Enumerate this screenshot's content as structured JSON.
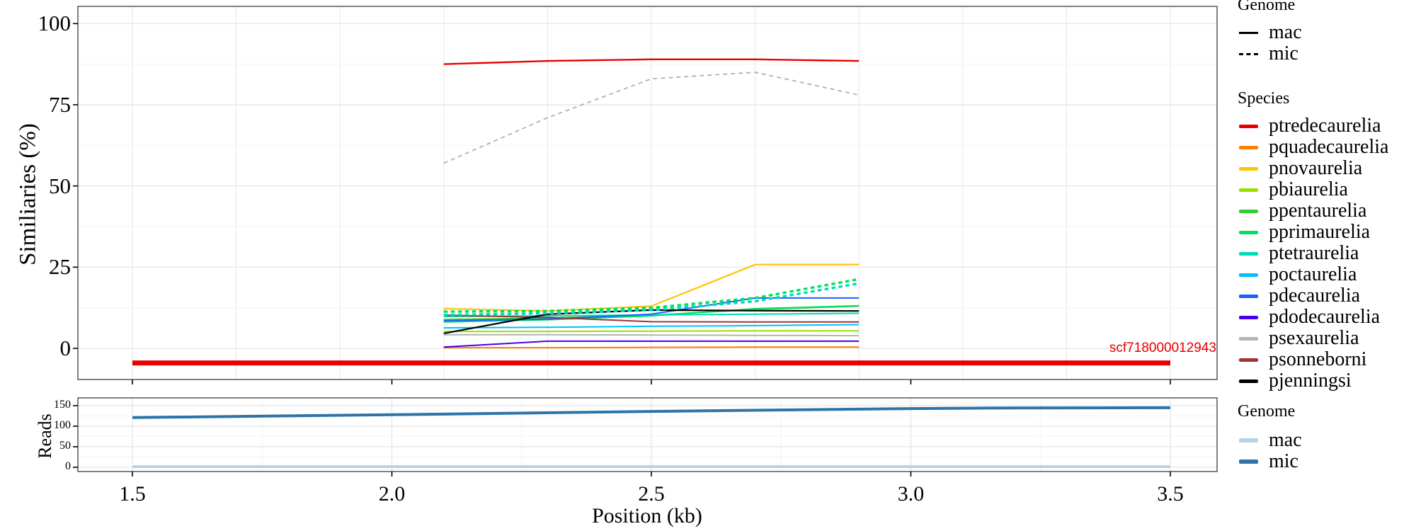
{
  "figure": {
    "x_axis_title": "Position (kb)",
    "x_tick_labels": [
      "1.5",
      "2.0",
      "2.5",
      "3.0",
      "3.5"
    ]
  },
  "panel_similarity": {
    "y_title": "Similiaries (%)",
    "y_tick_labels": [
      "0",
      "25",
      "50",
      "75",
      "100"
    ],
    "annotation": "scf718000012943",
    "annotation_color": "#e60000"
  },
  "panel_reads": {
    "y_title": "Reads",
    "y_tick_labels": [
      "0",
      "50",
      "100",
      "150"
    ]
  },
  "legend_genome_top": {
    "title": "Genome",
    "items": [
      {
        "label": "mac",
        "style": "solid"
      },
      {
        "label": "mic",
        "style": "dashed"
      }
    ]
  },
  "legend_species": {
    "title": "Species",
    "items": [
      {
        "label": "ptredecaurelia",
        "color": "#e60000"
      },
      {
        "label": "pquadecaurelia",
        "color": "#ff7f00"
      },
      {
        "label": "pnovaurelia",
        "color": "#ffc400"
      },
      {
        "label": "pbiaurelia",
        "color": "#99e000"
      },
      {
        "label": "ppentaurelia",
        "color": "#33cc33"
      },
      {
        "label": "pprimaurelia",
        "color": "#00e05c"
      },
      {
        "label": "ptetraurelia",
        "color": "#00dcb4"
      },
      {
        "label": "poctaurelia",
        "color": "#00bfff"
      },
      {
        "label": "pdecaurelia",
        "color": "#1a5fff"
      },
      {
        "label": "pdodecaurelia",
        "color": "#4400ee"
      },
      {
        "label": "psexaurelia",
        "color": "#b3b3b3"
      },
      {
        "label": "psonneborni",
        "color": "#a03434"
      },
      {
        "label": "pjenningsi",
        "color": "#000000"
      }
    ]
  },
  "legend_genome_reads": {
    "title": "Genome",
    "items": [
      {
        "label": "mac",
        "color": "#b5d3e7"
      },
      {
        "label": "mic",
        "color": "#2e74a8"
      }
    ]
  },
  "chart_data": [
    {
      "id": "similarity",
      "type": "line",
      "ylabel": "Similiaries (%)",
      "xlabel": "Position (kb)",
      "x": [
        2.1,
        2.3,
        2.5,
        2.7,
        2.9
      ],
      "xlim": [
        1.4,
        3.59
      ],
      "ylim": [
        -10,
        105
      ],
      "x_major_ticks": [
        1.5,
        2.0,
        2.5,
        3.0,
        3.5
      ],
      "x_gridlines_every": 0.2,
      "y_major_ticks": [
        0,
        25,
        50,
        75,
        100
      ],
      "y_minor_gridlines": [
        12.5,
        37.5,
        62.5,
        87.5
      ],
      "grid": true,
      "legend_position": "right",
      "series": [
        {
          "name": "ptredecaurelia",
          "genome": "mac",
          "color": "#e60000",
          "dashed": false,
          "width": 2.4,
          "values": [
            87.5,
            88.5,
            89.0,
            89.0,
            88.5
          ]
        },
        {
          "name": "psexaurelia",
          "genome": "mic",
          "color": "#b0b0b0",
          "dashed": true,
          "width": 1.8,
          "values": [
            57.0,
            71.0,
            83.0,
            85.0,
            78.0
          ]
        },
        {
          "name": "pnovaurelia",
          "genome": "mac",
          "color": "#ffc400",
          "dashed": false,
          "width": 2.2,
          "values": [
            12.2,
            11.5,
            13.0,
            25.8,
            25.8
          ]
        },
        {
          "name": "pquadecaurelia",
          "genome": "mac",
          "color": "#ff7f00",
          "dashed": false,
          "width": 2,
          "values": [
            0.2,
            0.2,
            0.3,
            0.4,
            0.4
          ]
        },
        {
          "name": "pbiaurelia",
          "genome": "mac",
          "color": "#99e000",
          "dashed": false,
          "width": 2,
          "values": [
            5.2,
            5.2,
            5.3,
            5.4,
            5.4
          ]
        },
        {
          "name": "ppentaurelia",
          "genome": "mac",
          "color": "#33cc33",
          "dashed": false,
          "width": 2,
          "values": [
            8.9,
            9.3,
            10.2,
            12.0,
            13.0
          ]
        },
        {
          "name": "pprimaurelia",
          "genome": "mac",
          "color": "#00e05c",
          "dashed": false,
          "width": 2,
          "values": [
            8.1,
            8.8,
            10.0,
            12.2,
            13.1
          ]
        },
        {
          "name": "ptetraurelia",
          "genome": "mac",
          "color": "#00dcb4",
          "dashed": false,
          "width": 2,
          "values": [
            9.8,
            10.0,
            10.3,
            10.5,
            10.8
          ]
        },
        {
          "name": "poctaurelia",
          "genome": "mac",
          "color": "#00bfff",
          "dashed": false,
          "width": 2,
          "values": [
            6.3,
            6.5,
            6.8,
            7.0,
            7.3
          ]
        },
        {
          "name": "pdecaurelia",
          "genome": "mac",
          "color": "#1a5fff",
          "dashed": false,
          "width": 2,
          "values": [
            8.5,
            9.0,
            10.5,
            15.5,
            15.5
          ]
        },
        {
          "name": "pdodecaurelia",
          "genome": "mac",
          "color": "#4400ee",
          "dashed": false,
          "width": 2,
          "values": [
            0.4,
            2.2,
            2.2,
            2.2,
            2.2
          ]
        },
        {
          "name": "psexaurelia",
          "genome": "mac",
          "color": "#b3b3b3",
          "dashed": false,
          "width": 2,
          "values": [
            4.2,
            4.2,
            4.1,
            4.0,
            3.9
          ]
        },
        {
          "name": "psonneborni",
          "genome": "mac",
          "color": "#a03434",
          "dashed": false,
          "width": 2,
          "values": [
            10.2,
            9.5,
            8.2,
            8.1,
            8.1
          ]
        },
        {
          "name": "pjenningsi",
          "genome": "mac",
          "color": "#000000",
          "dashed": false,
          "width": 2.2,
          "values": [
            4.6,
            10.5,
            11.8,
            11.6,
            11.5
          ]
        },
        {
          "name": "ptetraurelia",
          "genome": "mic",
          "color": "#00dcb4",
          "dashed": true,
          "width": 3.4,
          "values": [
            10.3,
            10.8,
            11.8,
            14.5,
            20.0
          ]
        },
        {
          "name": "pprimaurelia",
          "genome": "mic",
          "color": "#00e05c",
          "dashed": true,
          "width": 3.4,
          "values": [
            11.3,
            11.5,
            12.5,
            15.5,
            21.3
          ]
        }
      ],
      "scaffold_bar": {
        "label": "scf718000012943",
        "x_start": 1.5,
        "x_end": 3.5,
        "y": -4.5,
        "thickness_px": 7,
        "color": "#e60000"
      }
    },
    {
      "id": "reads",
      "type": "line",
      "ylabel": "Reads",
      "x": [
        1.5,
        2.0,
        2.5,
        3.0,
        3.2,
        3.5
      ],
      "xlim": [
        1.4,
        3.59
      ],
      "ylim": [
        -10,
        169
      ],
      "x_major_ticks": [
        1.5,
        2.0,
        2.5,
        3.0,
        3.5
      ],
      "x_minor_gridlines": [
        1.75,
        2.25,
        2.75,
        3.25
      ],
      "y_major_ticks": [
        0,
        50,
        100,
        150
      ],
      "y_minor_gridlines": [
        25,
        75,
        125
      ],
      "grid": true,
      "legend_position": "right",
      "series": [
        {
          "name": "mac",
          "color": "#b5d3e7",
          "width": 4,
          "values": [
            1.5,
            1.5,
            1.5,
            1.5,
            1.5,
            1.5
          ]
        },
        {
          "name": "mic",
          "color": "#2e74a8",
          "width": 4,
          "values": [
            121,
            128,
            136,
            143,
            144.5,
            145
          ]
        }
      ]
    }
  ]
}
